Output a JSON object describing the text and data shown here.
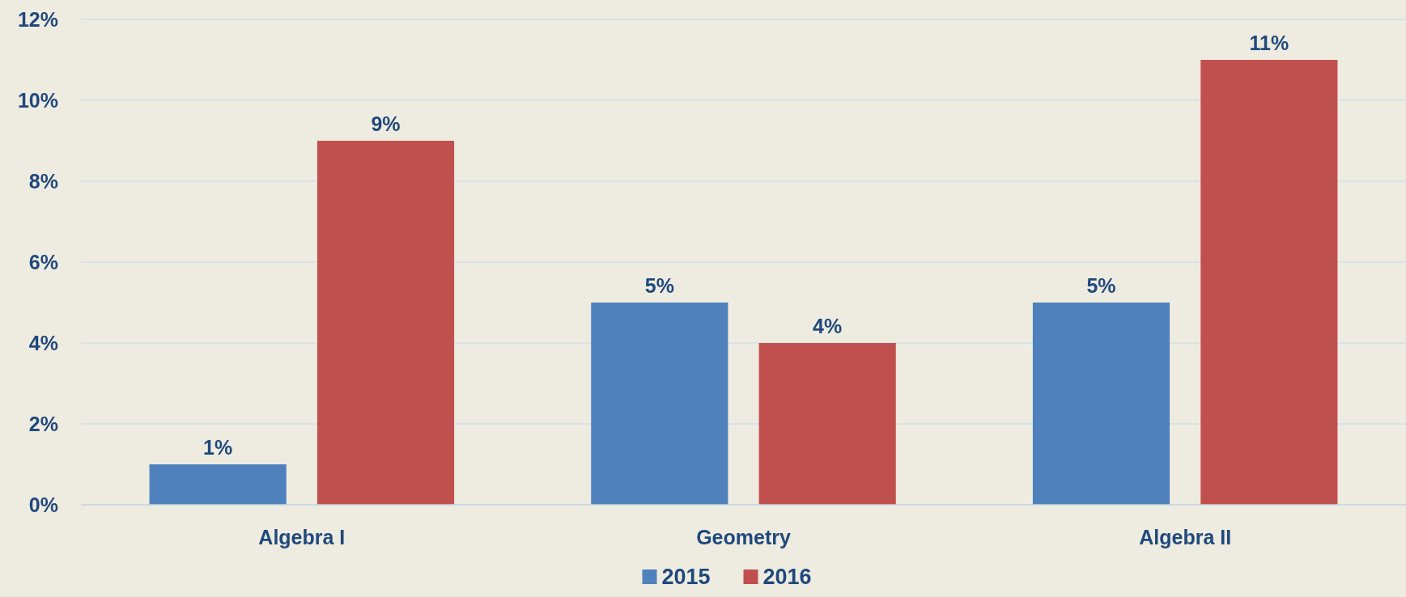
{
  "chart_data": {
    "type": "bar",
    "categories": [
      "Algebra I",
      "Geometry",
      "Algebra II"
    ],
    "series": [
      {
        "name": "2015",
        "color": "#4f81bd",
        "values": [
          1,
          5,
          5
        ],
        "value_labels": [
          "1%",
          "5%",
          "5%"
        ]
      },
      {
        "name": "2016",
        "color": "#c0504d",
        "values": [
          9,
          4,
          11
        ],
        "value_labels": [
          "9%",
          "4%",
          "11%"
        ]
      }
    ],
    "ylim": [
      0,
      12
    ],
    "yticks": [
      {
        "value": 0,
        "label": "0%"
      },
      {
        "value": 2,
        "label": "2%"
      },
      {
        "value": 4,
        "label": "4%"
      },
      {
        "value": 6,
        "label": "6%"
      },
      {
        "value": 8,
        "label": "8%"
      },
      {
        "value": 10,
        "label": "10%"
      },
      {
        "value": 12,
        "label": "12%"
      }
    ],
    "grid": "y",
    "legend": "bottom"
  }
}
